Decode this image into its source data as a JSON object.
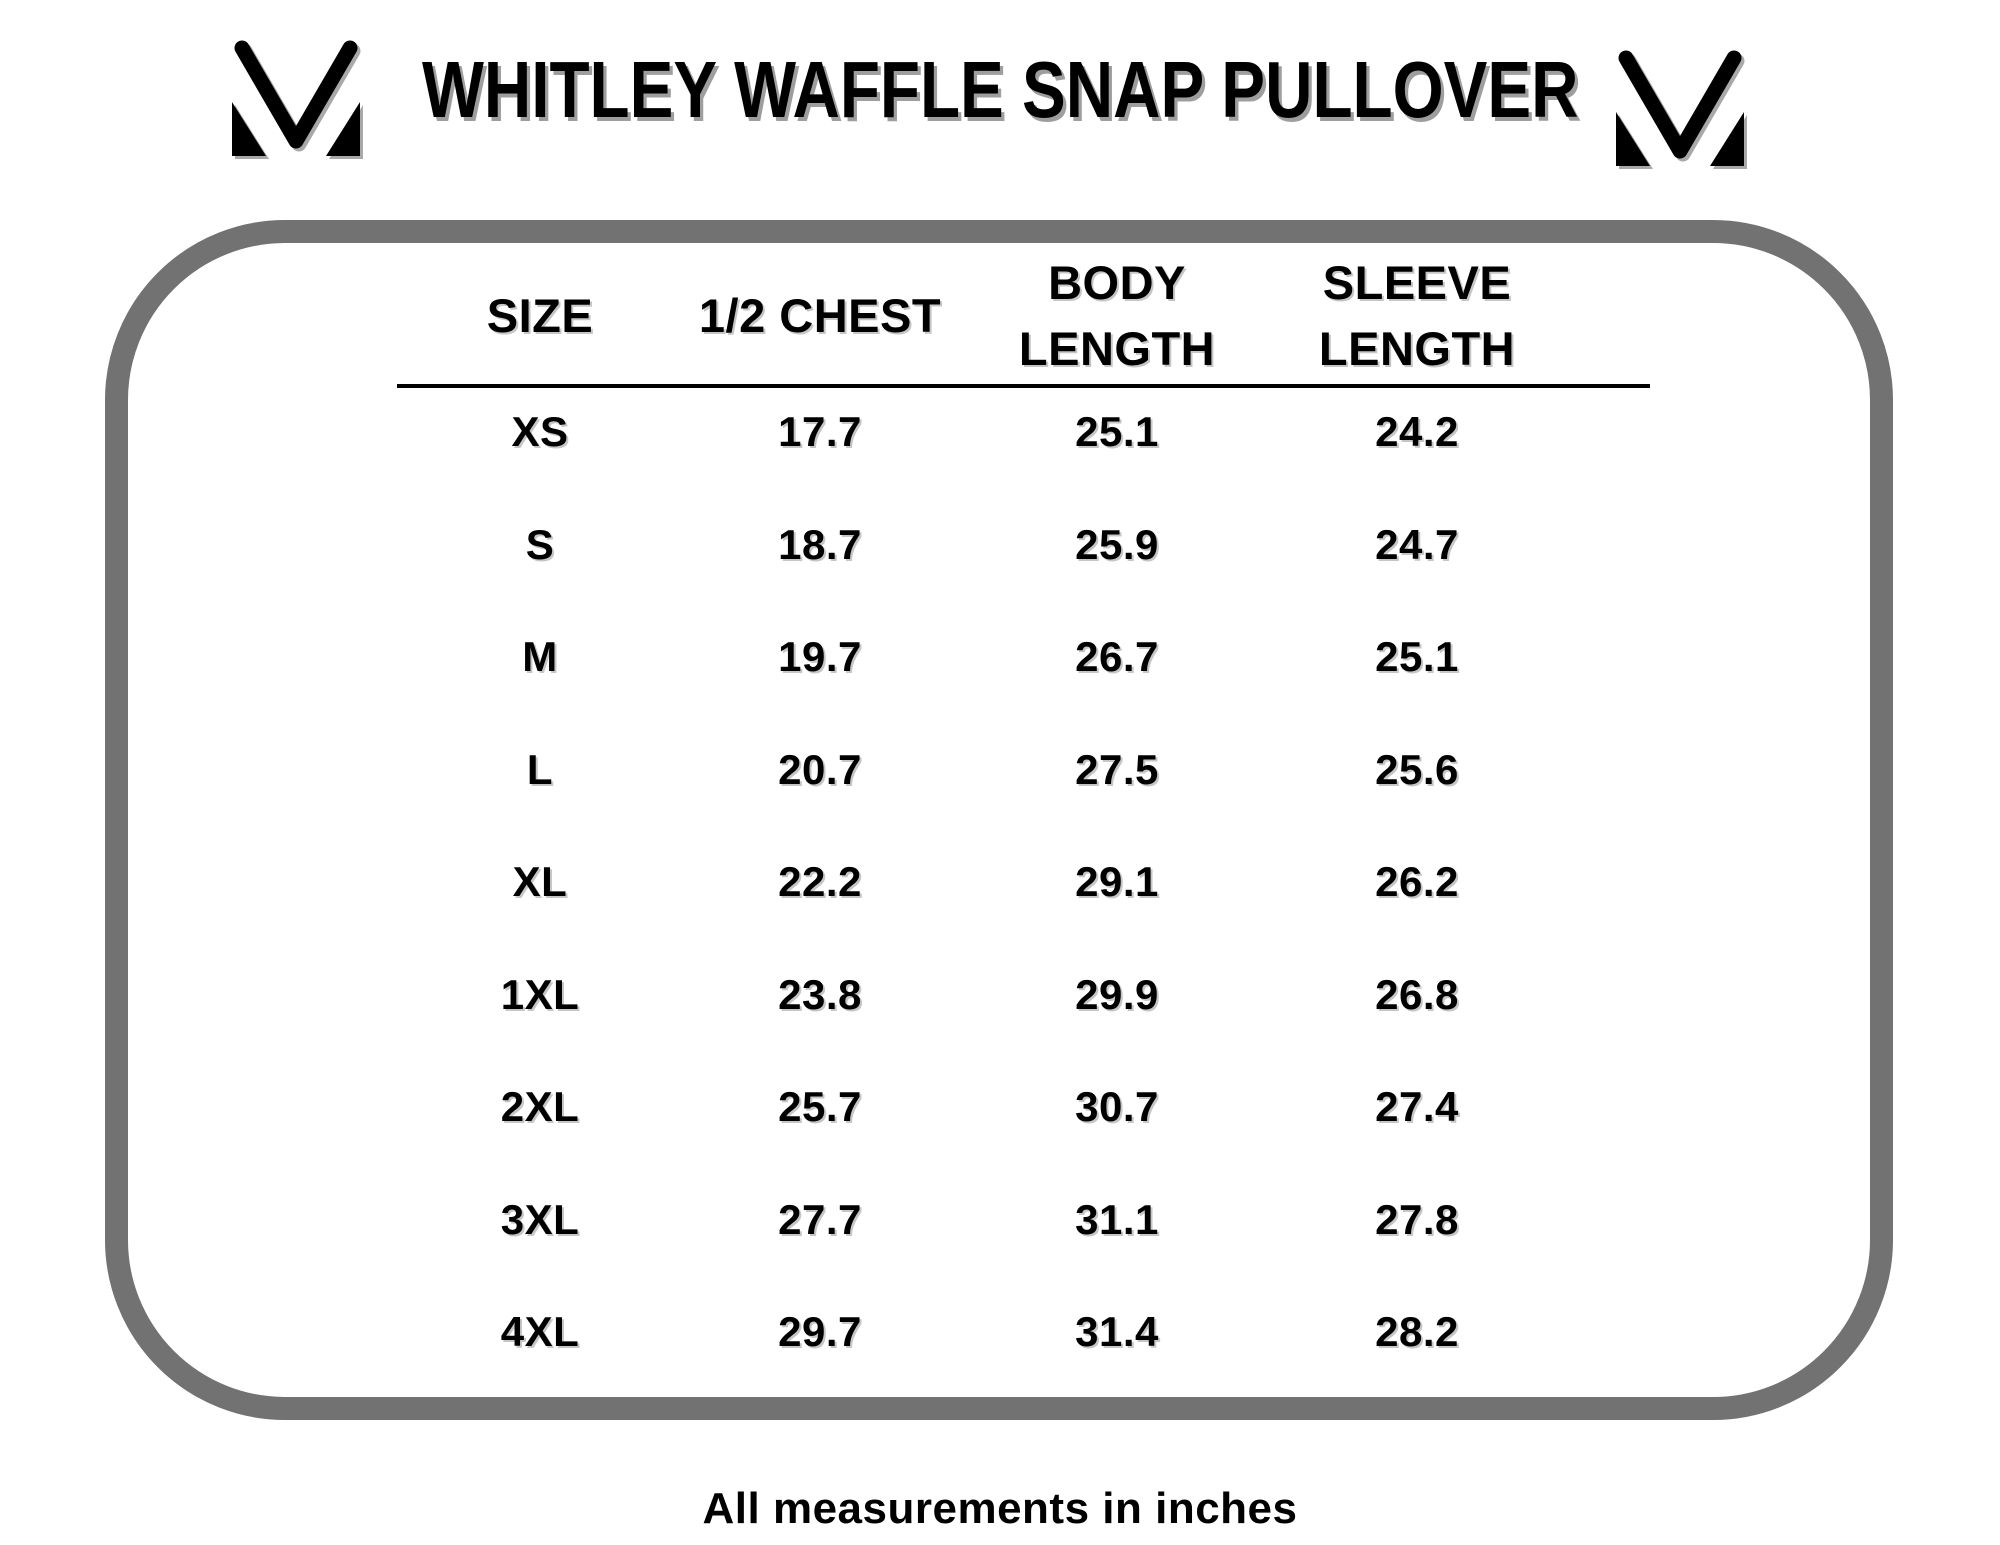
{
  "header": {
    "title": "WHITLEY WAFFLE SNAP PULLOVER",
    "logo_icon": "m-monogram-logo",
    "title_shadow_color": "#9e9e9e"
  },
  "frame": {
    "border_color": "#727272"
  },
  "table": {
    "columns": [
      {
        "lines": [
          "SIZE"
        ]
      },
      {
        "lines": [
          "1/2 CHEST"
        ]
      },
      {
        "lines": [
          "BODY",
          "LENGTH"
        ]
      },
      {
        "lines": [
          "SLEEVE",
          "LENGTH"
        ]
      }
    ],
    "rows": [
      {
        "size": "XS",
        "half_chest": "17.7",
        "body_length": "25.1",
        "sleeve_length": "24.2"
      },
      {
        "size": "S",
        "half_chest": "18.7",
        "body_length": "25.9",
        "sleeve_length": "24.7"
      },
      {
        "size": "M",
        "half_chest": "19.7",
        "body_length": "26.7",
        "sleeve_length": "25.1"
      },
      {
        "size": "L",
        "half_chest": "20.7",
        "body_length": "27.5",
        "sleeve_length": "25.6"
      },
      {
        "size": "XL",
        "half_chest": "22.2",
        "body_length": "29.1",
        "sleeve_length": "26.2"
      },
      {
        "size": "1XL",
        "half_chest": "23.8",
        "body_length": "29.9",
        "sleeve_length": "26.8"
      },
      {
        "size": "2XL",
        "half_chest": "25.7",
        "body_length": "30.7",
        "sleeve_length": "27.4"
      },
      {
        "size": "3XL",
        "half_chest": "27.7",
        "body_length": "31.1",
        "sleeve_length": "27.8"
      },
      {
        "size": "4XL",
        "half_chest": "29.7",
        "body_length": "31.4",
        "sleeve_length": "28.2"
      }
    ],
    "text_color": "#000000",
    "divider_color": "#000000"
  },
  "footer": {
    "note": "All measurements in inches"
  }
}
